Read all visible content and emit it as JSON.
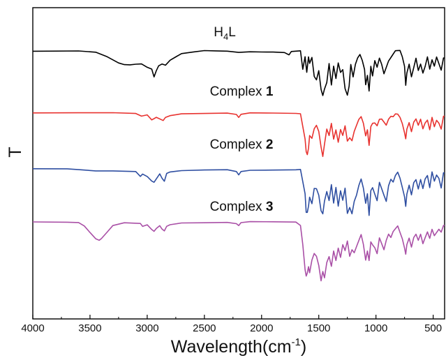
{
  "chart_data": {
    "type": "line",
    "title": "",
    "xlabel": "Wavelength(cm",
    "xlabel_sup": "-1",
    "xlabel_close": ")",
    "ylabel": "T",
    "xlim": [
      4000,
      400
    ],
    "x_reversed": true,
    "xticks": [
      4000,
      3500,
      3000,
      2500,
      2000,
      1500,
      1000,
      500
    ],
    "xtick_labels": [
      "4000",
      "3500",
      "3000",
      "2500",
      "2000",
      "1500",
      "1000",
      "500"
    ],
    "ylim": [
      0,
      100
    ],
    "yticks": [],
    "grid": false,
    "legend": "none",
    "series": [
      {
        "name": "H4L",
        "label_main": "H",
        "label_sub": "4",
        "label_tail": "L",
        "color": "#000000",
        "baseline": 86,
        "x": [
          4000,
          3600,
          3450,
          3350,
          3250,
          3200,
          3150,
          3100,
          3050,
          3000,
          2960,
          2940,
          2920,
          2900,
          2870,
          2840,
          2800,
          2750,
          2700,
          2600,
          2500,
          2400,
          2300,
          2200,
          2100,
          2000,
          1900,
          1800,
          1760,
          1740,
          1700,
          1660,
          1640,
          1620,
          1605,
          1590,
          1580,
          1560,
          1540,
          1520,
          1500,
          1480,
          1465,
          1450,
          1430,
          1410,
          1390,
          1370,
          1350,
          1330,
          1310,
          1290,
          1270,
          1250,
          1235,
          1220,
          1200,
          1180,
          1160,
          1140,
          1120,
          1100,
          1090,
          1075,
          1060,
          1045,
          1030,
          1010,
          990,
          970,
          950,
          930,
          910,
          890,
          870,
          850,
          830,
          810,
          790,
          770,
          750,
          740,
          730,
          710,
          690,
          670,
          650,
          630,
          610,
          590,
          570,
          550,
          530,
          510,
          490,
          470,
          450,
          430,
          410,
          400
        ],
        "y": [
          86,
          86,
          85.5,
          84,
          82,
          81.5,
          81.5,
          81.8,
          82,
          81,
          80.5,
          78,
          80,
          81.5,
          82,
          81.5,
          83,
          84,
          85,
          85.5,
          86,
          86,
          86,
          85.7,
          86,
          86,
          86,
          85.8,
          85,
          86,
          86,
          86,
          80,
          84,
          79,
          84,
          82,
          84,
          78,
          77,
          80,
          74,
          72,
          74,
          76,
          82,
          75,
          81,
          77,
          82,
          79,
          80,
          74,
          72,
          75,
          82,
          78,
          82,
          84,
          85,
          83,
          80,
          75,
          78,
          73,
          81,
          78,
          83,
          81,
          84,
          82,
          79,
          81,
          83,
          84,
          85,
          86,
          86,
          86,
          84,
          81,
          75,
          79,
          82,
          78,
          81,
          84,
          80,
          82,
          79,
          81,
          84,
          80,
          83,
          81,
          84,
          82,
          80,
          84,
          84
        ]
      },
      {
        "name": "Complex 1",
        "label_main": "Complex ",
        "label_bold": "1",
        "color": "#e8322f",
        "baseline": 66,
        "x": [
          4000,
          3600,
          3300,
          3100,
          3050,
          3000,
          2960,
          2940,
          2920,
          2860,
          2840,
          2800,
          2700,
          2500,
          2300,
          2220,
          2200,
          2180,
          2100,
          1900,
          1700,
          1660,
          1640,
          1620,
          1610,
          1600,
          1590,
          1580,
          1560,
          1540,
          1520,
          1500,
          1480,
          1465,
          1450,
          1430,
          1410,
          1390,
          1370,
          1350,
          1330,
          1310,
          1290,
          1270,
          1250,
          1230,
          1210,
          1190,
          1170,
          1150,
          1130,
          1110,
          1090,
          1075,
          1060,
          1045,
          1030,
          1010,
          990,
          970,
          950,
          930,
          910,
          890,
          870,
          850,
          830,
          810,
          790,
          770,
          750,
          740,
          730,
          710,
          690,
          670,
          650,
          630,
          610,
          590,
          570,
          550,
          530,
          510,
          490,
          470,
          450,
          430,
          410,
          400
        ],
        "y": [
          66,
          66,
          66,
          65.8,
          65,
          65.5,
          64,
          64.5,
          65,
          64,
          65,
          65.5,
          66,
          66,
          66,
          65.5,
          64.5,
          65.5,
          66,
          66,
          66,
          66,
          62,
          58,
          54,
          53,
          55,
          59,
          58,
          61,
          62,
          60,
          55,
          52,
          56,
          61,
          59,
          63,
          58,
          61,
          57,
          61,
          59,
          62,
          57,
          58,
          57,
          60,
          62,
          64,
          65,
          63,
          59,
          61,
          56,
          62,
          63,
          63,
          62,
          64,
          64,
          63,
          62,
          64,
          65,
          65,
          66,
          66,
          65,
          63,
          60,
          58,
          61,
          63,
          60,
          63,
          64,
          62,
          64,
          61,
          63,
          64,
          61,
          65,
          62,
          64,
          63,
          61,
          65,
          65
        ]
      },
      {
        "name": "Complex 2",
        "label_main": "Complex ",
        "label_bold": "2",
        "color": "#2e4ea1",
        "baseline": 48,
        "x": [
          4000,
          3700,
          3600,
          3450,
          3300,
          3100,
          3060,
          3040,
          3000,
          2960,
          2940,
          2920,
          2890,
          2870,
          2850,
          2830,
          2800,
          2700,
          2500,
          2300,
          2220,
          2200,
          2180,
          2100,
          1900,
          1700,
          1660,
          1640,
          1620,
          1610,
          1600,
          1590,
          1580,
          1560,
          1540,
          1520,
          1500,
          1480,
          1465,
          1450,
          1430,
          1410,
          1390,
          1370,
          1350,
          1330,
          1310,
          1290,
          1270,
          1250,
          1230,
          1210,
          1190,
          1170,
          1150,
          1130,
          1110,
          1090,
          1075,
          1060,
          1045,
          1030,
          1010,
          990,
          970,
          950,
          930,
          910,
          890,
          870,
          850,
          830,
          810,
          790,
          770,
          750,
          740,
          730,
          710,
          690,
          670,
          650,
          630,
          610,
          590,
          570,
          550,
          530,
          510,
          490,
          470,
          450,
          430,
          410,
          400
        ],
        "y": [
          48,
          48,
          47.8,
          47.5,
          47.6,
          47.5,
          46,
          46.8,
          46,
          44.5,
          44,
          45,
          46.5,
          45,
          44,
          46.5,
          47,
          47.5,
          47.8,
          48,
          47.5,
          46.5,
          47.6,
          48,
          48,
          48,
          48,
          44,
          40,
          34,
          34,
          36,
          39,
          37,
          42,
          42,
          40,
          35,
          34,
          38,
          41,
          38,
          43,
          37,
          42,
          36,
          41,
          38,
          42,
          34,
          36,
          34,
          38,
          40,
          43,
          45,
          42,
          37,
          40,
          33,
          41,
          42,
          40,
          38,
          44,
          42,
          40,
          38,
          43,
          45,
          44,
          46,
          47,
          45,
          42,
          39,
          36,
          40,
          43,
          40,
          44,
          45,
          42,
          45,
          42,
          45,
          46,
          42,
          47,
          44,
          46,
          45,
          42,
          47,
          47
        ]
      },
      {
        "name": "Complex 3",
        "label_main": "Complex ",
        "label_bold": "3",
        "color": "#a94fa6",
        "baseline": 31,
        "x": [
          4000,
          3700,
          3600,
          3550,
          3500,
          3450,
          3420,
          3400,
          3350,
          3300,
          3200,
          3060,
          3040,
          3000,
          2960,
          2940,
          2920,
          2890,
          2870,
          2850,
          2830,
          2800,
          2700,
          2500,
          2300,
          2220,
          2200,
          2180,
          2100,
          1900,
          1700,
          1660,
          1640,
          1620,
          1610,
          1600,
          1590,
          1580,
          1560,
          1540,
          1520,
          1500,
          1480,
          1465,
          1450,
          1430,
          1410,
          1390,
          1370,
          1350,
          1330,
          1310,
          1290,
          1270,
          1250,
          1230,
          1210,
          1190,
          1170,
          1150,
          1130,
          1110,
          1090,
          1075,
          1060,
          1045,
          1030,
          1010,
          990,
          970,
          950,
          930,
          910,
          890,
          870,
          850,
          830,
          810,
          790,
          770,
          750,
          740,
          730,
          710,
          690,
          670,
          650,
          630,
          610,
          590,
          570,
          550,
          530,
          510,
          490,
          470,
          450,
          430,
          410,
          400
        ],
        "y": [
          31,
          31,
          31,
          30,
          28,
          26,
          25.5,
          26,
          28,
          30,
          30.8,
          30.5,
          29.5,
          30,
          28.5,
          28,
          29,
          30,
          29,
          28.5,
          30,
          30.5,
          31,
          31,
          31,
          30.5,
          29.8,
          30.7,
          31,
          31,
          31,
          30,
          24,
          16,
          14,
          15,
          17,
          15,
          19,
          21,
          20,
          17,
          12,
          15,
          13,
          18,
          20,
          17,
          22,
          19,
          23,
          20,
          24,
          22,
          25,
          20,
          22,
          21,
          23,
          25,
          27,
          24,
          19,
          22,
          19,
          25,
          24,
          23,
          21,
          26,
          24,
          22,
          25,
          27,
          26,
          28,
          29,
          30,
          28,
          26,
          23,
          21,
          24,
          26,
          23,
          26,
          27,
          25,
          27,
          24,
          26,
          28,
          26,
          29,
          27,
          28,
          29,
          28,
          30,
          30
        ]
      }
    ]
  }
}
